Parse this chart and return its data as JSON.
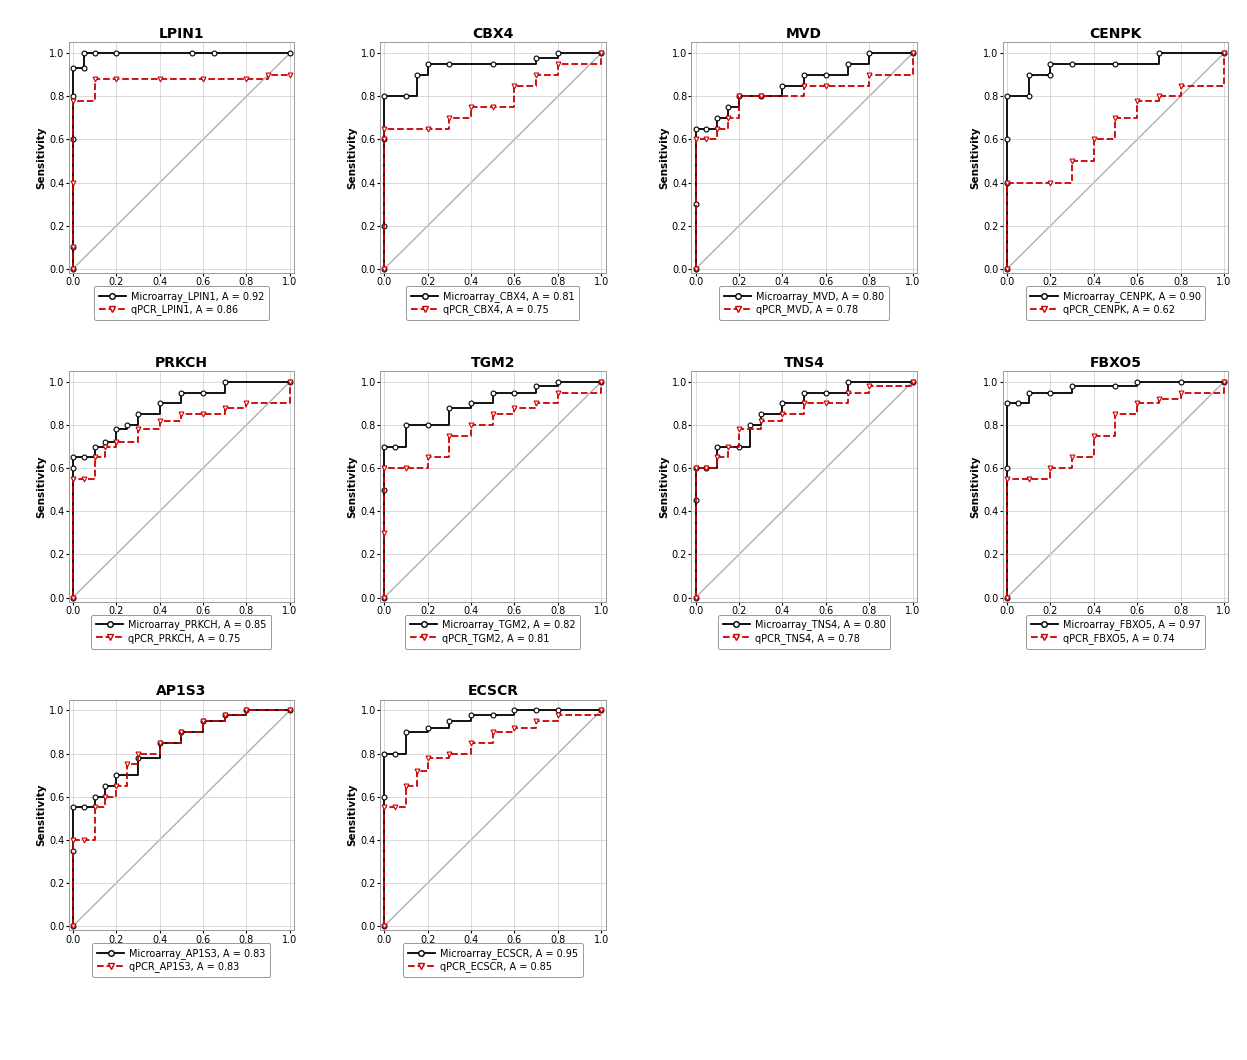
{
  "genes": [
    "LPIN1",
    "CBX4",
    "MVD",
    "CENPK",
    "PRKCH",
    "TGM2",
    "TNS4",
    "FBXO5",
    "AP1S3",
    "ECSCR"
  ],
  "auc": {
    "LPIN1": {
      "micro": 0.92,
      "qpcr": 0.86
    },
    "CBX4": {
      "micro": 0.81,
      "qpcr": 0.75
    },
    "MVD": {
      "micro": 0.8,
      "qpcr": 0.78
    },
    "CENPK": {
      "micro": 0.9,
      "qpcr": 0.62
    },
    "PRKCH": {
      "micro": 0.85,
      "qpcr": 0.75
    },
    "TGM2": {
      "micro": 0.82,
      "qpcr": 0.81
    },
    "TNS4": {
      "micro": 0.8,
      "qpcr": 0.78
    },
    "FBXO5": {
      "micro": 0.97,
      "qpcr": 0.74
    },
    "AP1S3": {
      "micro": 0.83,
      "qpcr": 0.83
    },
    "ECSCR": {
      "micro": 0.95,
      "qpcr": 0.85
    }
  },
  "roc_curves": {
    "LPIN1": {
      "micro_fpr": [
        0.0,
        0.0,
        0.0,
        0.0,
        0.0,
        0.05,
        0.05,
        0.1,
        0.2,
        0.55,
        0.65,
        1.0
      ],
      "micro_tpr": [
        0.0,
        0.1,
        0.6,
        0.8,
        0.93,
        0.93,
        1.0,
        1.0,
        1.0,
        1.0,
        1.0,
        1.0
      ],
      "qpcr_fpr": [
        0.0,
        0.0,
        0.0,
        0.0,
        0.1,
        0.2,
        0.4,
        0.6,
        0.8,
        0.9,
        1.0
      ],
      "qpcr_tpr": [
        0.0,
        0.1,
        0.4,
        0.78,
        0.88,
        0.88,
        0.88,
        0.88,
        0.88,
        0.9,
        0.9
      ]
    },
    "CBX4": {
      "micro_fpr": [
        0.0,
        0.0,
        0.0,
        0.0,
        0.1,
        0.15,
        0.2,
        0.3,
        0.5,
        0.7,
        0.8,
        1.0
      ],
      "micro_tpr": [
        0.0,
        0.2,
        0.6,
        0.8,
        0.8,
        0.9,
        0.95,
        0.95,
        0.95,
        0.98,
        1.0,
        1.0
      ],
      "qpcr_fpr": [
        0.0,
        0.0,
        0.0,
        0.2,
        0.3,
        0.4,
        0.5,
        0.6,
        0.7,
        0.8,
        1.0
      ],
      "qpcr_tpr": [
        0.0,
        0.6,
        0.65,
        0.65,
        0.7,
        0.75,
        0.75,
        0.85,
        0.9,
        0.95,
        1.0
      ]
    },
    "MVD": {
      "micro_fpr": [
        0.0,
        0.0,
        0.0,
        0.05,
        0.1,
        0.15,
        0.2,
        0.3,
        0.4,
        0.5,
        0.6,
        0.7,
        0.8,
        1.0
      ],
      "micro_tpr": [
        0.0,
        0.3,
        0.65,
        0.65,
        0.7,
        0.75,
        0.8,
        0.8,
        0.85,
        0.9,
        0.9,
        0.95,
        1.0,
        1.0
      ],
      "qpcr_fpr": [
        0.0,
        0.0,
        0.05,
        0.1,
        0.15,
        0.2,
        0.3,
        0.5,
        0.6,
        0.8,
        1.0
      ],
      "qpcr_tpr": [
        0.0,
        0.6,
        0.6,
        0.65,
        0.7,
        0.8,
        0.8,
        0.85,
        0.85,
        0.9,
        1.0
      ]
    },
    "CENPK": {
      "micro_fpr": [
        0.0,
        0.0,
        0.0,
        0.0,
        0.1,
        0.1,
        0.2,
        0.2,
        0.3,
        0.5,
        0.7,
        1.0
      ],
      "micro_tpr": [
        0.0,
        0.4,
        0.6,
        0.8,
        0.8,
        0.9,
        0.9,
        0.95,
        0.95,
        0.95,
        1.0,
        1.0
      ],
      "qpcr_fpr": [
        0.0,
        0.0,
        0.2,
        0.3,
        0.4,
        0.5,
        0.6,
        0.7,
        0.8,
        1.0
      ],
      "qpcr_tpr": [
        0.0,
        0.4,
        0.4,
        0.5,
        0.6,
        0.7,
        0.78,
        0.8,
        0.85,
        1.0
      ]
    },
    "PRKCH": {
      "micro_fpr": [
        0.0,
        0.0,
        0.0,
        0.05,
        0.1,
        0.15,
        0.2,
        0.25,
        0.3,
        0.4,
        0.5,
        0.6,
        0.7,
        1.0
      ],
      "micro_tpr": [
        0.0,
        0.6,
        0.65,
        0.65,
        0.7,
        0.72,
        0.78,
        0.8,
        0.85,
        0.9,
        0.95,
        0.95,
        1.0,
        1.0
      ],
      "qpcr_fpr": [
        0.0,
        0.0,
        0.05,
        0.1,
        0.15,
        0.2,
        0.3,
        0.4,
        0.5,
        0.6,
        0.7,
        0.8,
        1.0
      ],
      "qpcr_tpr": [
        0.0,
        0.55,
        0.55,
        0.65,
        0.7,
        0.72,
        0.78,
        0.82,
        0.85,
        0.85,
        0.88,
        0.9,
        1.0
      ]
    },
    "TGM2": {
      "micro_fpr": [
        0.0,
        0.0,
        0.0,
        0.05,
        0.1,
        0.2,
        0.3,
        0.4,
        0.5,
        0.6,
        0.7,
        0.8,
        1.0
      ],
      "micro_tpr": [
        0.0,
        0.5,
        0.7,
        0.7,
        0.8,
        0.8,
        0.88,
        0.9,
        0.95,
        0.95,
        0.98,
        1.0,
        1.0
      ],
      "qpcr_fpr": [
        0.0,
        0.0,
        0.0,
        0.1,
        0.2,
        0.3,
        0.4,
        0.5,
        0.6,
        0.7,
        0.8,
        1.0
      ],
      "qpcr_tpr": [
        0.0,
        0.3,
        0.6,
        0.6,
        0.65,
        0.75,
        0.8,
        0.85,
        0.88,
        0.9,
        0.95,
        1.0
      ]
    },
    "TNS4": {
      "micro_fpr": [
        0.0,
        0.0,
        0.0,
        0.05,
        0.1,
        0.2,
        0.25,
        0.3,
        0.4,
        0.5,
        0.6,
        0.7,
        1.0
      ],
      "micro_tpr": [
        0.0,
        0.45,
        0.6,
        0.6,
        0.7,
        0.7,
        0.8,
        0.85,
        0.9,
        0.95,
        0.95,
        1.0,
        1.0
      ],
      "qpcr_fpr": [
        0.0,
        0.0,
        0.05,
        0.1,
        0.15,
        0.2,
        0.3,
        0.4,
        0.5,
        0.6,
        0.7,
        0.8,
        1.0
      ],
      "qpcr_tpr": [
        0.0,
        0.6,
        0.6,
        0.65,
        0.7,
        0.78,
        0.82,
        0.85,
        0.9,
        0.9,
        0.95,
        0.98,
        1.0
      ]
    },
    "FBXO5": {
      "micro_fpr": [
        0.0,
        0.0,
        0.0,
        0.05,
        0.1,
        0.2,
        0.3,
        0.5,
        0.6,
        0.8,
        1.0
      ],
      "micro_tpr": [
        0.0,
        0.6,
        0.9,
        0.9,
        0.95,
        0.95,
        0.98,
        0.98,
        1.0,
        1.0,
        1.0
      ],
      "qpcr_fpr": [
        0.0,
        0.0,
        0.1,
        0.2,
        0.3,
        0.4,
        0.5,
        0.6,
        0.7,
        0.8,
        1.0
      ],
      "qpcr_tpr": [
        0.0,
        0.55,
        0.55,
        0.6,
        0.65,
        0.75,
        0.85,
        0.9,
        0.92,
        0.95,
        1.0
      ]
    },
    "AP1S3": {
      "micro_fpr": [
        0.0,
        0.0,
        0.0,
        0.05,
        0.1,
        0.15,
        0.2,
        0.3,
        0.4,
        0.5,
        0.6,
        0.7,
        0.8,
        1.0
      ],
      "micro_tpr": [
        0.0,
        0.35,
        0.55,
        0.55,
        0.6,
        0.65,
        0.7,
        0.78,
        0.85,
        0.9,
        0.95,
        0.98,
        1.0,
        1.0
      ],
      "qpcr_fpr": [
        0.0,
        0.0,
        0.05,
        0.1,
        0.15,
        0.2,
        0.25,
        0.3,
        0.4,
        0.5,
        0.6,
        0.7,
        0.8,
        1.0
      ],
      "qpcr_tpr": [
        0.0,
        0.4,
        0.4,
        0.55,
        0.6,
        0.65,
        0.75,
        0.8,
        0.85,
        0.9,
        0.95,
        0.98,
        1.0,
        1.0
      ]
    },
    "ECSCR": {
      "micro_fpr": [
        0.0,
        0.0,
        0.0,
        0.05,
        0.1,
        0.2,
        0.3,
        0.4,
        0.5,
        0.6,
        0.7,
        0.8,
        1.0
      ],
      "micro_tpr": [
        0.0,
        0.6,
        0.8,
        0.8,
        0.9,
        0.92,
        0.95,
        0.98,
        0.98,
        1.0,
        1.0,
        1.0,
        1.0
      ],
      "qpcr_fpr": [
        0.0,
        0.0,
        0.05,
        0.1,
        0.15,
        0.2,
        0.3,
        0.4,
        0.5,
        0.6,
        0.7,
        0.8,
        1.0
      ],
      "qpcr_tpr": [
        0.0,
        0.55,
        0.55,
        0.65,
        0.72,
        0.78,
        0.8,
        0.85,
        0.9,
        0.92,
        0.95,
        0.98,
        1.0
      ]
    }
  },
  "micro_color": "#000000",
  "qpcr_color": "#cc0000",
  "diag_color": "#b0b0b0",
  "bg_color": "#ffffff",
  "grid_color": "#cccccc",
  "title_fontsize": 10,
  "label_fontsize": 7.5,
  "tick_fontsize": 7,
  "legend_fontsize": 7
}
